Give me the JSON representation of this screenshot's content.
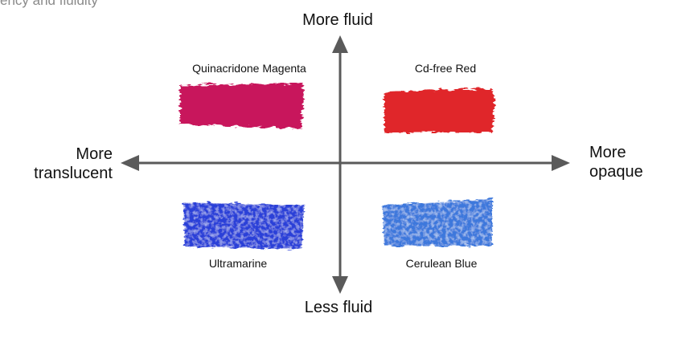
{
  "caption": "ency and fluidity",
  "axes": {
    "top": "More fluid",
    "bottom": "Less fluid",
    "left_line1": "More",
    "left_line2": "translucent",
    "right_line1": "More",
    "right_line2": "opaque"
  },
  "swatches": {
    "magenta": {
      "label": "Quinacridone Magenta",
      "color": "#c8175c"
    },
    "red": {
      "label": "Cd-free Red",
      "color": "#e0252a"
    },
    "ultramarine": {
      "label": "Ultramarine",
      "color": "#2a3fd8"
    },
    "cerulean": {
      "label": "Cerulean  Blue",
      "color": "#3c78dc"
    }
  },
  "colors": {
    "axis": "#5a5a5a"
  }
}
